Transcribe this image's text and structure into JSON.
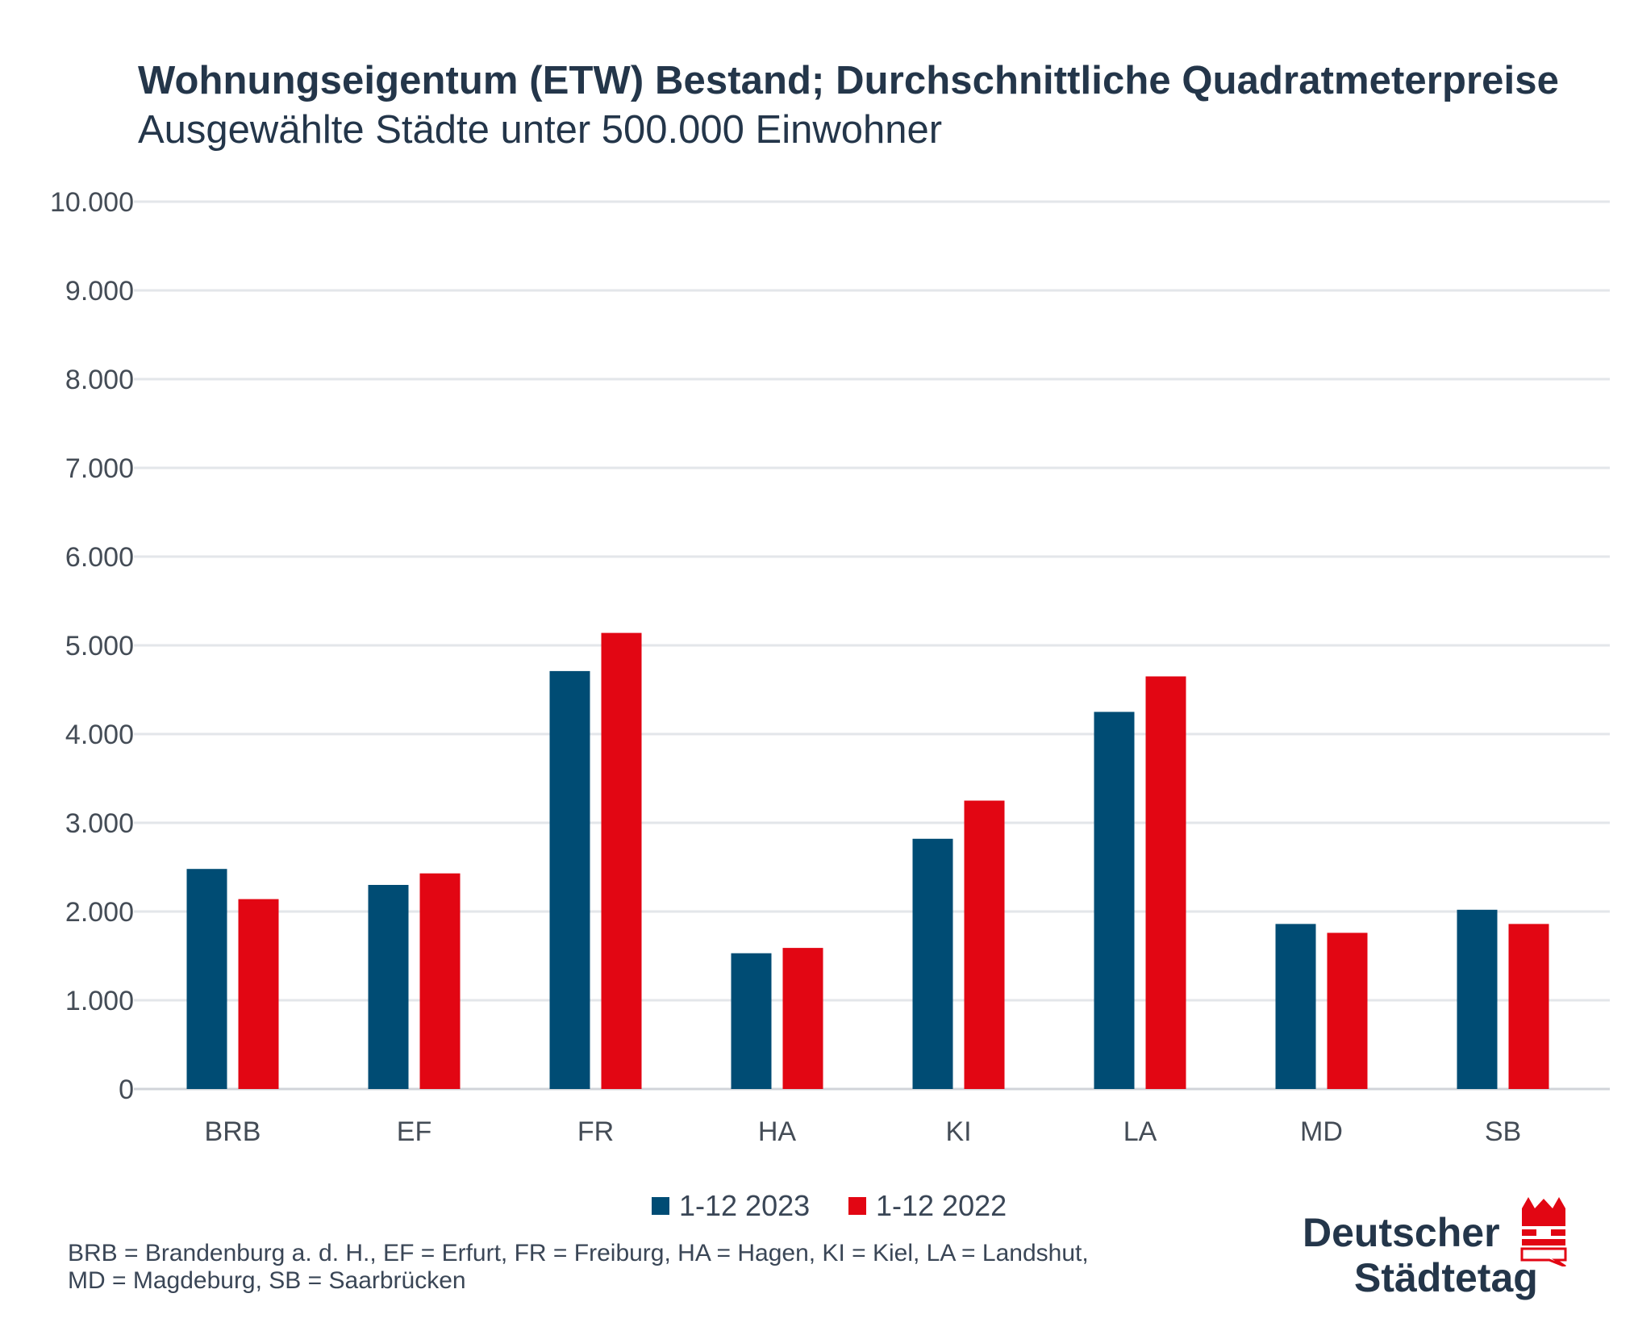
{
  "header": {
    "title": "Wohnungseigentum (ETW) Bestand; Durchschnittliche Quadratmeterpreise",
    "subtitle": "Ausgewählte Städte unter 500.000 Einwohner"
  },
  "chart_data": {
    "type": "bar",
    "title": "Wohnungseigentum (ETW) Bestand; Durchschnittliche Quadratmeterpreise",
    "subtitle": "Ausgewählte Städte unter 500.000 Einwohner",
    "categories": [
      "BRB",
      "EF",
      "FR",
      "HA",
      "KI",
      "LA",
      "MD",
      "SB"
    ],
    "series": [
      {
        "name": "1-12 2023",
        "color": "#004c74",
        "values": [
          2480,
          2300,
          4710,
          1530,
          2820,
          4250,
          1860,
          2020
        ]
      },
      {
        "name": "1-12 2022",
        "color": "#e20613",
        "values": [
          2140,
          2430,
          5140,
          1590,
          3250,
          4650,
          1760,
          1860
        ]
      }
    ],
    "ylim": [
      0,
      10000
    ],
    "yticks": [
      0,
      1000,
      2000,
      3000,
      4000,
      5000,
      6000,
      7000,
      8000,
      9000,
      10000
    ],
    "ytick_labels": [
      "0",
      "1.000",
      "2.000",
      "3.000",
      "4.000",
      "5.000",
      "6.000",
      "7.000",
      "8.000",
      "9.000",
      "10.000"
    ],
    "grid": true,
    "legend": "bottom-center",
    "xlabel": "",
    "ylabel": ""
  },
  "footnote": {
    "line1": "BRB = Brandenburg a. d. H., EF = Erfurt, FR = Freiburg, HA = Hagen, KI = Kiel, LA = Landshut,",
    "line2": "MD = Magdeburg, SB = Saarbrücken"
  },
  "logo": {
    "line1": "Deutscher",
    "line2": "Städtetag",
    "icon": "city-crown-icon",
    "color_red": "#e20613",
    "color_text": "#24364a"
  }
}
